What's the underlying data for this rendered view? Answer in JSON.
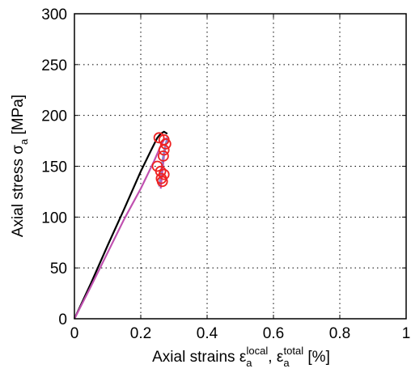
{
  "chart_data": {
    "type": "line",
    "xlabel": {
      "prefix": "Axial strains ε",
      "sub1": "a",
      "sup1": "local",
      "mid": ", ε",
      "sub2": "a",
      "sup2": "total",
      "suffix": " [%]"
    },
    "ylabel": {
      "prefix": "Axial stress σ",
      "sub": "a",
      "suffix": " [MPa]"
    },
    "xlim": [
      0,
      1
    ],
    "ylim": [
      0,
      300
    ],
    "xticks": [
      "0",
      "0.2",
      "0.4",
      "0.6",
      "0.8",
      "1"
    ],
    "yticks": [
      "0",
      "50",
      "100",
      "150",
      "200",
      "250",
      "300"
    ],
    "grid": true,
    "grid_style": "dotted",
    "colors": {
      "local": "#000000",
      "total": "#c050b0",
      "markers": "#ee2222"
    },
    "series": [
      {
        "color": "#000000",
        "x": [
          0,
          0.05,
          0.1,
          0.15,
          0.2,
          0.23,
          0.25,
          0.26,
          0.27,
          0.28
        ],
        "y": [
          0,
          35,
          72,
          108,
          145,
          165,
          178,
          182,
          184,
          182
        ]
      },
      {
        "color": "#c050b0",
        "x": [
          0,
          0.05,
          0.1,
          0.15,
          0.2,
          0.24,
          0.26,
          0.27,
          0.28
        ],
        "y": [
          0,
          32,
          65,
          98,
          128,
          155,
          170,
          176,
          178
        ]
      },
      {
        "color": "#c050b0",
        "x": [
          0.26,
          0.265,
          0.27,
          0.275,
          0.28
        ],
        "y": [
          128,
          145,
          160,
          170,
          176
        ]
      },
      {
        "color": "#8888cc",
        "x": [
          0.255,
          0.26,
          0.265,
          0.27,
          0.275,
          0.28
        ],
        "y": [
          130,
          142,
          155,
          165,
          172,
          178
        ]
      }
    ],
    "markers": {
      "color": "#ee2222",
      "x": [
        0.255,
        0.27,
        0.275,
        0.27,
        0.268,
        0.25,
        0.26,
        0.27,
        0.262,
        0.265
      ],
      "y": [
        178,
        176,
        172,
        166,
        160,
        150,
        145,
        142,
        138,
        135
      ]
    }
  }
}
